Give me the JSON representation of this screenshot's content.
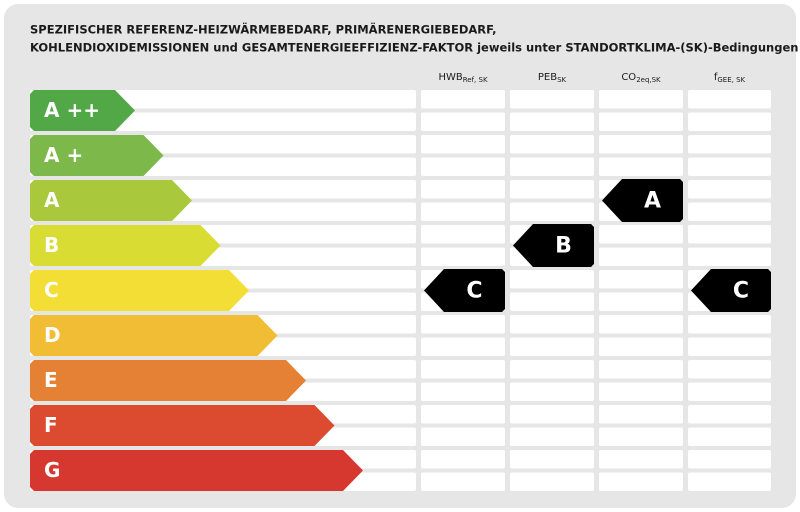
{
  "title_lines": [
    "SPEZIFISCHER REFERENZ-HEIZWÄRMEBEDARF, PRIMÄRENERGIEBEDARF,",
    "KOHLENDIOXIDEMISSIONEN und GESAMTENERGIEEFFIZIENZ-FAKTOR jeweils unter STANDORTKLIMA-(SK)-Bedingungen"
  ],
  "classes": [
    {
      "label": "A ++",
      "color": "#52a747"
    },
    {
      "label": "A +",
      "color": "#7db84a"
    },
    {
      "label": "A",
      "color": "#aac83b"
    },
    {
      "label": "B",
      "color": "#d8dc33"
    },
    {
      "label": "C",
      "color": "#f3de36"
    },
    {
      "label": "D",
      "color": "#f0bd34"
    },
    {
      "label": "E",
      "color": "#e48134"
    },
    {
      "label": "F",
      "color": "#dc4b30"
    },
    {
      "label": "G",
      "color": "#d6372f"
    }
  ],
  "columns": [
    {
      "main": "HWB",
      "sub": "Ref, SK",
      "rating": "C"
    },
    {
      "main": "PEB",
      "sub": "SK",
      "rating": "B"
    },
    {
      "main": "CO",
      "sub": "2eq,SK",
      "rating": "A"
    },
    {
      "main": "f",
      "sub": "GEE, SK",
      "rating": "C"
    }
  ]
}
